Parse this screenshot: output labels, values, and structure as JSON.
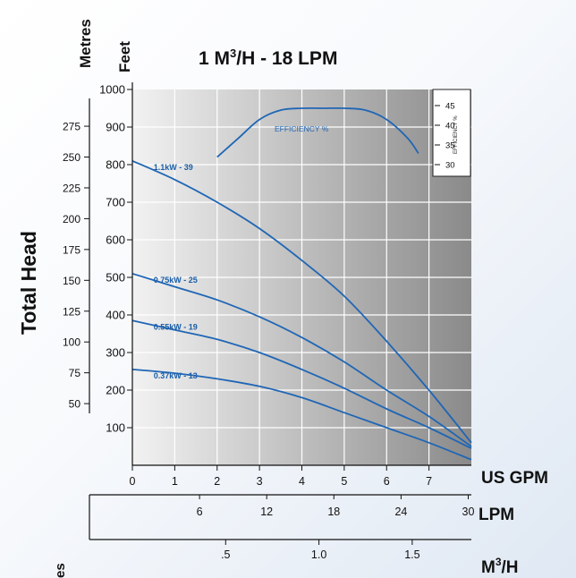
{
  "chart_data": {
    "type": "line",
    "title": "1 M³/H - 18 LPM",
    "title_main": "1 M",
    "title_sup": "3",
    "title_rest": "/H - 18 LPM",
    "left_title": "Total Head",
    "metres_label": "Metres",
    "feet_label": "Feet",
    "bottom_metres_fragment": "es",
    "x_axis_label": "US GPM",
    "lpm_label": "LPM",
    "m3h_label_main": "M",
    "m3h_label_sup": "3",
    "m3h_label_rest": "/H",
    "xlim": [
      0,
      8
    ],
    "ylim_feet": [
      0,
      1000
    ],
    "x_ticks": [
      0,
      1,
      2,
      3,
      4,
      5,
      6,
      7
    ],
    "feet_ticks": [
      100,
      200,
      300,
      400,
      500,
      600,
      700,
      800,
      900,
      1000
    ],
    "metres_ticks": [
      50,
      75,
      100,
      125,
      150,
      175,
      200,
      225,
      250,
      275
    ],
    "lpm_ticks": [
      6,
      12,
      18,
      24,
      30
    ],
    "m3h_ticks": [
      ".5",
      "1.0",
      "1.5"
    ],
    "m3h_values": [
      0.5,
      1.0,
      1.5
    ],
    "efficiency_label": "EFFICIENCY %",
    "efficiency_axis_title": "EFFICIENCY %",
    "efficiency_ticks": [
      30,
      35,
      40,
      45
    ],
    "grid": true,
    "series": [
      {
        "name": "1.1kW - 39",
        "x": [
          0,
          1,
          2,
          3,
          4,
          5,
          6,
          7,
          8
        ],
        "y": [
          810,
          760,
          700,
          630,
          545,
          450,
          330,
          200,
          60
        ]
      },
      {
        "name": "0.75kW - 25",
        "x": [
          0,
          1,
          2,
          3,
          4,
          5,
          6,
          7,
          8
        ],
        "y": [
          510,
          475,
          440,
          395,
          340,
          275,
          200,
          130,
          50
        ]
      },
      {
        "name": "0.55kW - 19",
        "x": [
          0,
          1,
          2,
          3,
          4,
          5,
          6,
          7,
          8
        ],
        "y": [
          385,
          360,
          335,
          300,
          255,
          205,
          150,
          100,
          45
        ]
      },
      {
        "name": "0.37kW - 13",
        "x": [
          0,
          1,
          2,
          3,
          4,
          5,
          6,
          7,
          8
        ],
        "y": [
          255,
          245,
          230,
          210,
          180,
          140,
          100,
          60,
          15
        ]
      }
    ],
    "efficiency_curve": {
      "x": [
        2,
        2.5,
        3,
        3.5,
        4,
        4.5,
        5,
        5.5,
        6,
        6.5,
        6.75
      ],
      "y": [
        820,
        870,
        920,
        945,
        950,
        950,
        950,
        945,
        920,
        870,
        830
      ]
    },
    "colors": {
      "curve": "#1f66b5",
      "label": "#1a5ea8"
    }
  }
}
